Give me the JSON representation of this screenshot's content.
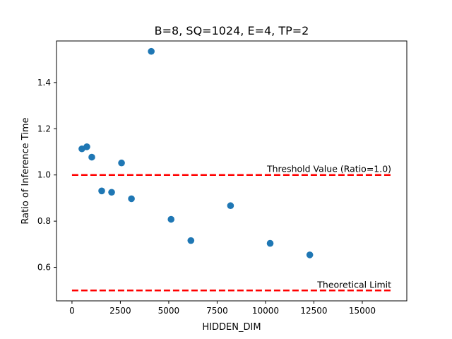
{
  "chart_data": {
    "type": "scatter",
    "title": "B=8, SQ=1024, E=4, TP=2",
    "xlabel": "HIDDEN_DIM",
    "ylabel": "Ratio of Inference Time",
    "xlim": [
      -800,
      17300
    ],
    "ylim": [
      0.455,
      1.58
    ],
    "x_ticks": [
      0,
      2500,
      5000,
      7500,
      10000,
      12500,
      15000
    ],
    "x_tick_labels": [
      "0",
      "2500",
      "5000",
      "7500",
      "10000",
      "12500",
      "15000"
    ],
    "y_ticks": [
      0.6,
      0.8,
      1.0,
      1.2,
      1.4
    ],
    "y_tick_labels": [
      "0.6",
      "0.8",
      "1.0",
      "1.2",
      "1.4"
    ],
    "grid": false,
    "marker_color": "#1f77b4",
    "points": [
      {
        "x": 512,
        "y": 1.113
      },
      {
        "x": 768,
        "y": 1.122
      },
      {
        "x": 1024,
        "y": 1.077
      },
      {
        "x": 1536,
        "y": 0.931
      },
      {
        "x": 2048,
        "y": 0.925
      },
      {
        "x": 2560,
        "y": 1.052
      },
      {
        "x": 3072,
        "y": 0.897
      },
      {
        "x": 4096,
        "y": 1.535
      },
      {
        "x": 5120,
        "y": 0.808
      },
      {
        "x": 6144,
        "y": 0.716
      },
      {
        "x": 8192,
        "y": 0.867
      },
      {
        "x": 10240,
        "y": 0.704
      },
      {
        "x": 12288,
        "y": 0.654
      }
    ],
    "reference_lines": [
      {
        "label": "Threshold Value (Ratio=1.0)",
        "y": 1.0,
        "x_start": 0,
        "x_end": 16500,
        "color": "#ff0000",
        "style": "dashed"
      },
      {
        "label": "Theoretical Limit",
        "y": 0.5,
        "x_start": 0,
        "x_end": 16500,
        "color": "#ff0000",
        "style": "dashed"
      }
    ]
  }
}
